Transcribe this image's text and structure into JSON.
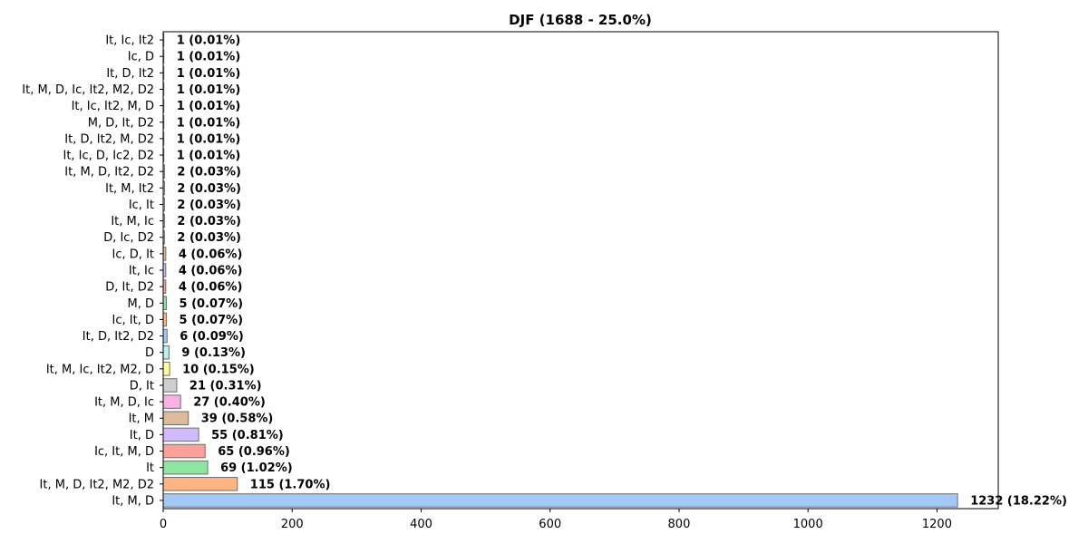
{
  "chart_data": {
    "type": "bar",
    "orientation": "horizontal",
    "title": "DJF (1688 - 25.0%)",
    "xlabel": "",
    "ylabel": "",
    "xlim": [
      0,
      1295
    ],
    "xticks": [
      0,
      200,
      400,
      600,
      800,
      1000,
      1200
    ],
    "grid": false,
    "categories": [
      "It, M, D",
      "It, M, D, It2, M2, D2",
      "It",
      "Ic, It, M, D",
      "It, D",
      "It, M",
      "It, M, D, Ic",
      "D, It",
      "It, M, Ic, It2, M2, D",
      "D",
      "It, D, It2, D2",
      "Ic, It, D",
      "M, D",
      "D, It, D2",
      "It, Ic",
      "Ic, D, It",
      "D, Ic, D2",
      "It, M, Ic",
      "Ic, It",
      "It, M, It2",
      "It, M, D, It2, D2",
      "It, Ic, D, Ic2, D2",
      "It, D, It2, M, D2",
      "M, D, It, D2",
      "It, Ic, It2, M, D",
      "It, M, D, Ic, It2, M2, D2",
      "It, D, It2",
      "Ic, D",
      "It, Ic, It2"
    ],
    "values": [
      1232,
      115,
      69,
      65,
      55,
      39,
      27,
      21,
      10,
      9,
      6,
      5,
      5,
      4,
      4,
      4,
      2,
      2,
      2,
      2,
      2,
      1,
      1,
      1,
      1,
      1,
      1,
      1,
      1
    ],
    "data_labels": [
      "1232 (18.22%)",
      "115 (1.70%)",
      "69 (1.02%)",
      "65 (0.96%)",
      "55 (0.81%)",
      "39 (0.58%)",
      "27 (0.40%)",
      "21 (0.31%)",
      "10 (0.15%)",
      "9 (0.13%)",
      "6 (0.09%)",
      "5 (0.07%)",
      "5 (0.07%)",
      "4 (0.06%)",
      "4 (0.06%)",
      "4 (0.06%)",
      "2 (0.03%)",
      "2 (0.03%)",
      "2 (0.03%)",
      "2 (0.03%)",
      "2 (0.03%)",
      "1 (0.01%)",
      "1 (0.01%)",
      "1 (0.01%)",
      "1 (0.01%)",
      "1 (0.01%)",
      "1 (0.01%)",
      "1 (0.01%)",
      "1 (0.01%)"
    ],
    "colors": [
      "#a1c9f4",
      "#ffb482",
      "#8de5a1",
      "#ff9f9b",
      "#d0bbff",
      "#debb9b",
      "#fab0e4",
      "#cfcfcf",
      "#fffea3",
      "#b9f2f0",
      "#a1c9f4",
      "#ffb482",
      "#8de5a1",
      "#ff9f9b",
      "#d0bbff",
      "#debb9b",
      "#fab0e4",
      "#cfcfcf",
      "#fffea3",
      "#b9f2f0",
      "#a1c9f4",
      "#ffb482",
      "#8de5a1",
      "#ff9f9b",
      "#d0bbff",
      "#debb9b",
      "#fab0e4",
      "#cfcfcf",
      "#fffea3"
    ]
  }
}
